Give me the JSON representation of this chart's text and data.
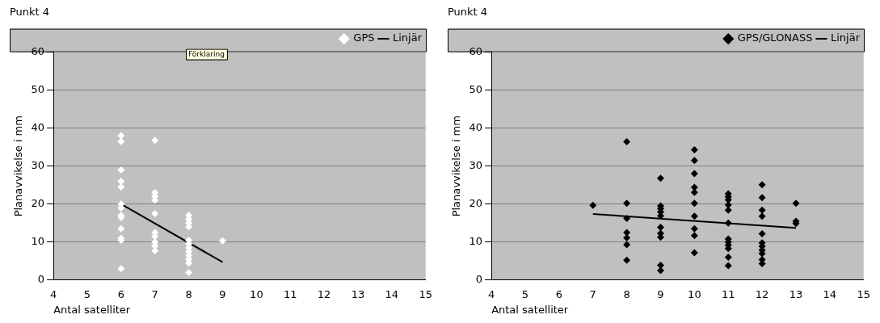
{
  "chart_data": [
    {
      "type": "scatter",
      "title": "Punkt 4",
      "xlabel": "Antal satelliter",
      "ylabel": "Planavvikelse i mm",
      "xlim": [
        4,
        15
      ],
      "xticks": [
        4,
        5,
        6,
        7,
        8,
        9,
        10,
        11,
        12,
        13,
        14,
        15
      ],
      "ylim": [
        0,
        60
      ],
      "yticks": [
        0,
        10,
        20,
        30,
        40,
        50,
        60
      ],
      "grid": "y",
      "legend": "top right",
      "annotations": [
        "Förklaring"
      ],
      "series": [
        {
          "name": "GPS",
          "type": "scatter",
          "marker": "diamond",
          "color": "#ffffff",
          "x": [
            6,
            6,
            6,
            6,
            6,
            6,
            6,
            6,
            6,
            6,
            6,
            6,
            6,
            7,
            7,
            7,
            7,
            7,
            7,
            7,
            7,
            7,
            7,
            8,
            8,
            8,
            8,
            8,
            8,
            8,
            8,
            8,
            8,
            8,
            8,
            9
          ],
          "values": [
            38,
            36.5,
            29,
            26,
            24.5,
            20,
            19,
            17,
            16.5,
            13.5,
            11,
            10.5,
            3,
            36.8,
            23,
            22,
            21,
            17.5,
            12.5,
            11.5,
            10,
            9,
            7.7,
            17,
            16,
            15,
            14,
            10.5,
            9.5,
            8.5,
            7.5,
            6.5,
            5.5,
            4.5,
            2,
            10.3
          ]
        },
        {
          "name": "Linjär",
          "type": "line",
          "marker": "none",
          "color": "#000000",
          "x": [
            6,
            9
          ],
          "values": [
            20,
            4.7
          ]
        }
      ]
    },
    {
      "type": "scatter",
      "title": "Punkt 4",
      "xlabel": "Antal satelliter",
      "ylabel": "Planavvikelse i mm",
      "xlim": [
        4,
        15
      ],
      "xticks": [
        4,
        5,
        6,
        7,
        8,
        9,
        10,
        11,
        12,
        13,
        14,
        15
      ],
      "ylim": [
        0,
        60
      ],
      "yticks": [
        0,
        10,
        20,
        30,
        40,
        50,
        60
      ],
      "grid": "y",
      "legend": "top right",
      "series": [
        {
          "name": "GPS/GLONASS",
          "type": "scatter",
          "marker": "diamond",
          "color": "#000000",
          "x": [
            7,
            8,
            8,
            8,
            8,
            8,
            8,
            8,
            9,
            9,
            9,
            9,
            9,
            9,
            9,
            9,
            9,
            9,
            10,
            10,
            10,
            10,
            10,
            10,
            10,
            10,
            10,
            10,
            11,
            11,
            11,
            11,
            11,
            11,
            11,
            11,
            11,
            11,
            11,
            11,
            12,
            12,
            12,
            12,
            12,
            12,
            12,
            12,
            12,
            12,
            12,
            13,
            13,
            13
          ],
          "values": [
            19.7,
            36.4,
            20.2,
            16.2,
            12.5,
            11.1,
            9.3,
            5.2,
            26.8,
            19.5,
            18.8,
            17.9,
            16.9,
            13.9,
            12.3,
            11.3,
            3.9,
            2.5,
            34.3,
            31.5,
            28,
            24.4,
            23.1,
            20.2,
            16.8,
            13.5,
            11.7,
            7.2,
            22.7,
            21.9,
            21.1,
            19.8,
            18.4,
            15,
            10.8,
            10,
            9.2,
            8.3,
            6,
            3.8,
            25.1,
            21.7,
            18.4,
            16.8,
            12.2,
            9.8,
            8.9,
            7.9,
            7,
            5.4,
            4.3,
            20.2,
            15.5,
            14.9
          ]
        },
        {
          "name": "Linjär",
          "type": "line",
          "marker": "none",
          "color": "#000000",
          "x": [
            7,
            13
          ],
          "values": [
            17.4,
            13.7
          ]
        }
      ]
    }
  ]
}
